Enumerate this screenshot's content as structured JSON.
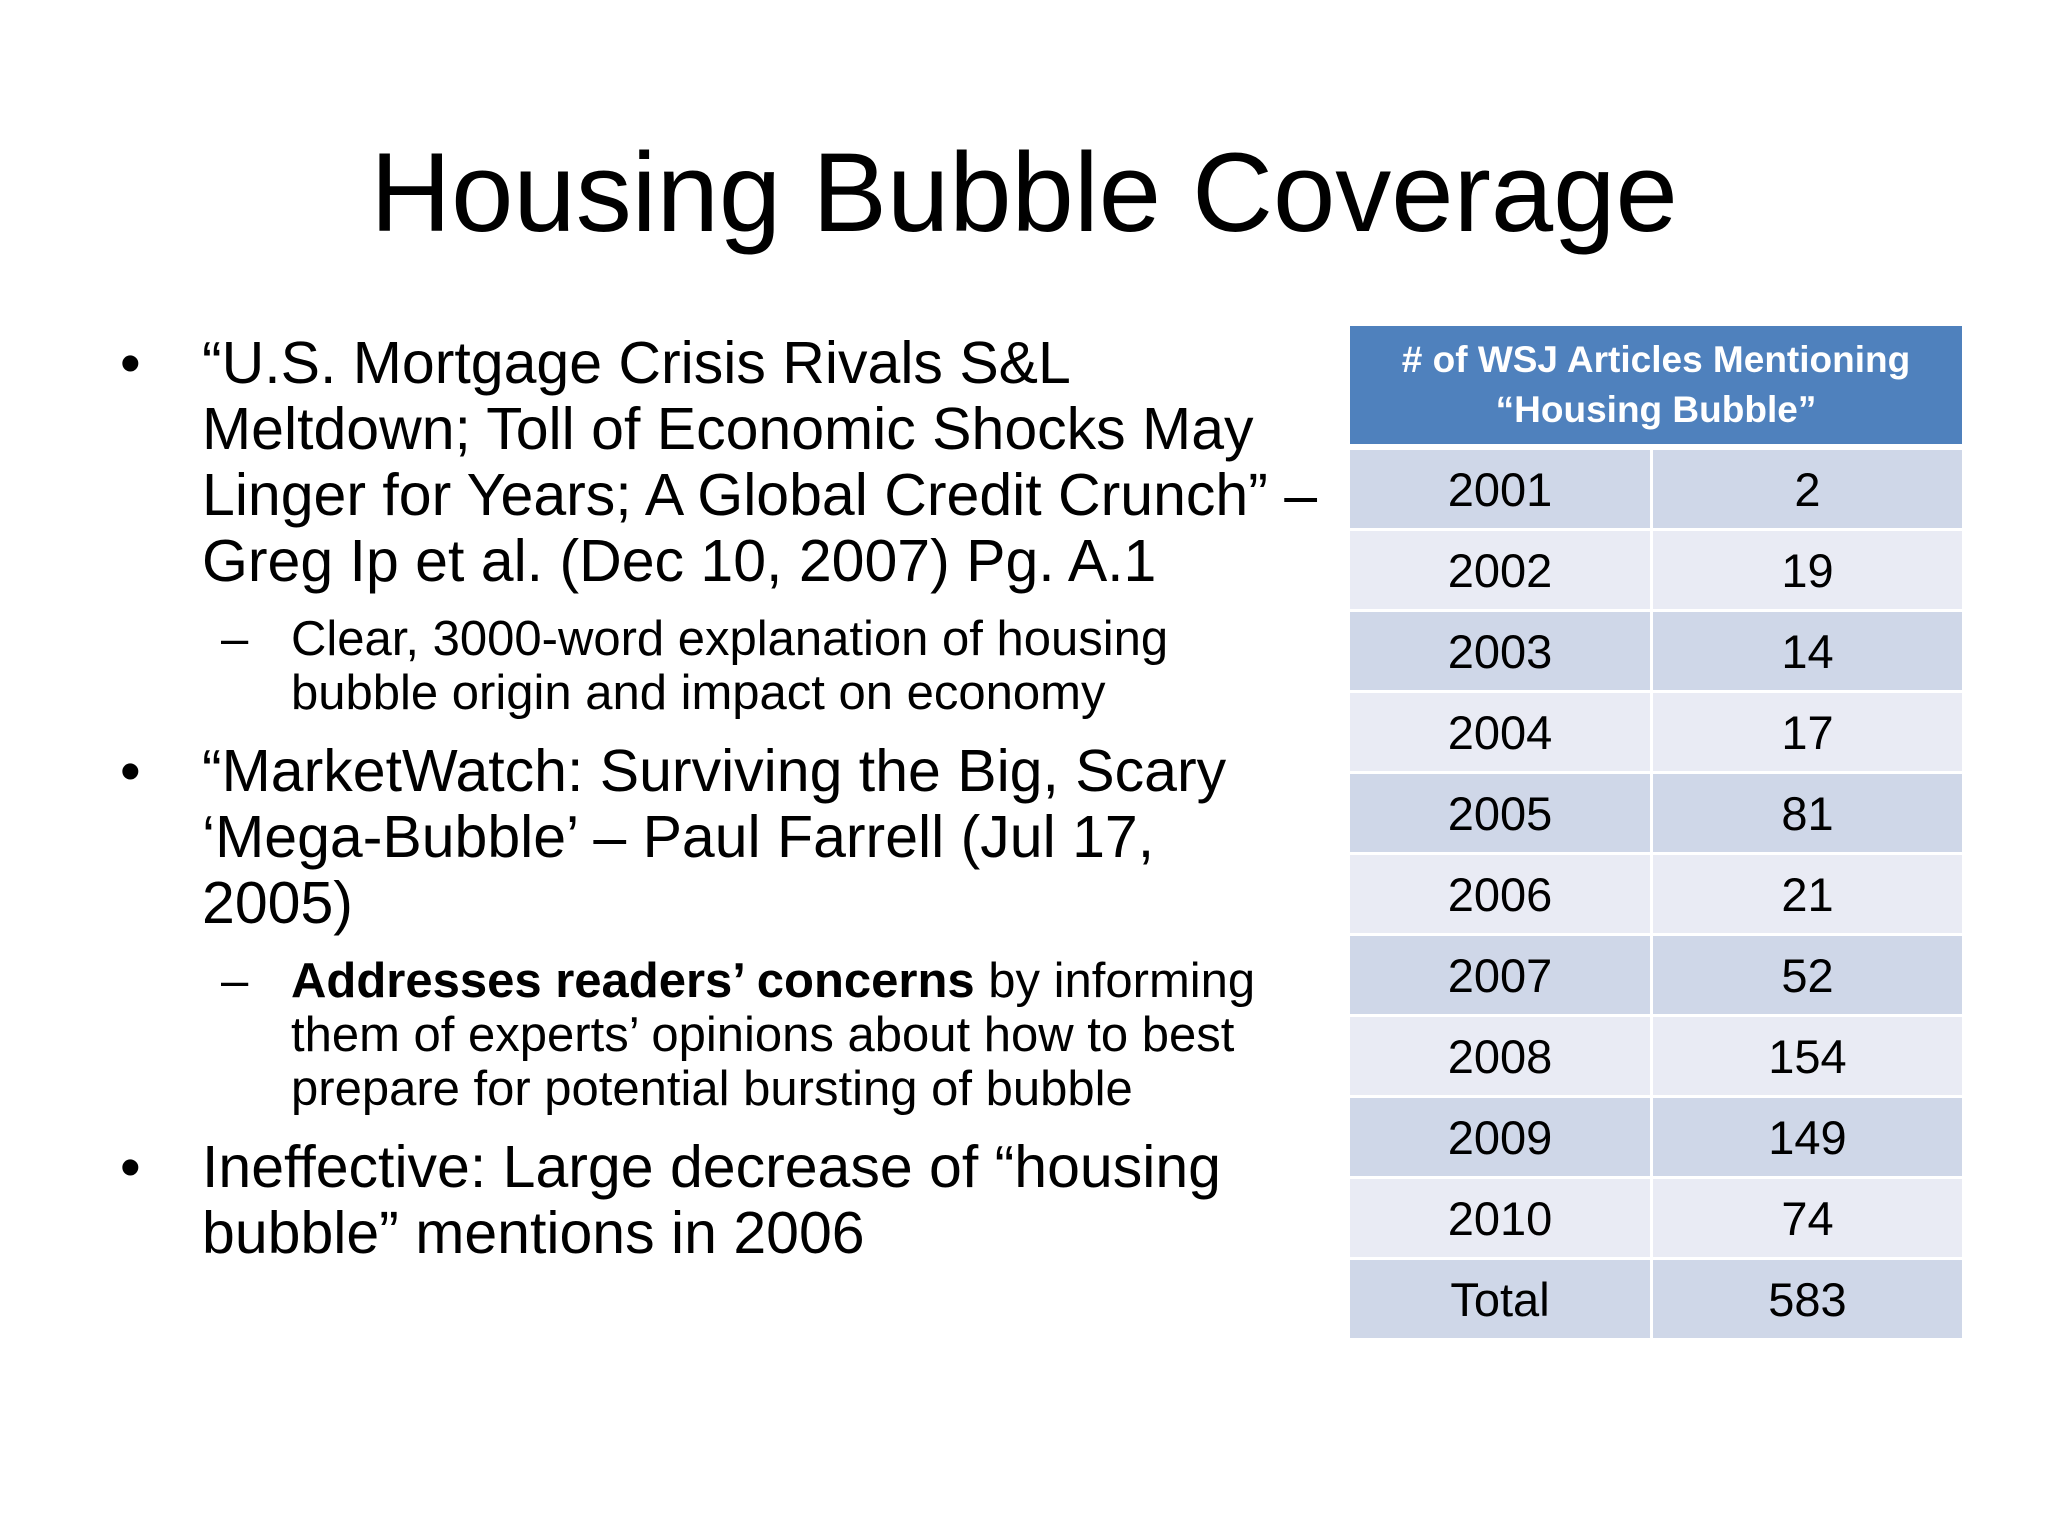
{
  "slide": {
    "title": "Housing Bubble Coverage"
  },
  "bullets": [
    {
      "text": "“U.S. Mortgage Crisis Rivals S&L Meltdown; Toll of Economic Shocks May Linger for Years; A Global Credit Crunch” – Greg Ip et al. (Dec 10, 2007) Pg. A.1",
      "sub": {
        "bold": "",
        "text": "Clear, 3000-word explanation of housing bubble origin and impact on economy"
      }
    },
    {
      "text": "“MarketWatch: Surviving the Big, Scary ‘Mega-Bubble’ – Paul Farrell (Jul 17, 2005)",
      "sub": {
        "bold": "Addresses readers’ concerns",
        "text": " by informing them of experts’ opinions about how to best prepare for potential bursting of bubble"
      }
    },
    {
      "text": "Ineffective: Large decrease of “housing bubble” mentions in 2006"
    }
  ],
  "symbols": {
    "bullet": "•",
    "dash": "–"
  },
  "table": {
    "header": "# of WSJ Articles Mentioning “Housing Bubble”",
    "rows": [
      {
        "year": "2001",
        "count": "2"
      },
      {
        "year": "2002",
        "count": "19"
      },
      {
        "year": "2003",
        "count": "14"
      },
      {
        "year": "2004",
        "count": "17"
      },
      {
        "year": "2005",
        "count": "81"
      },
      {
        "year": "2006",
        "count": "21"
      },
      {
        "year": "2007",
        "count": "52"
      },
      {
        "year": "2008",
        "count": "154"
      },
      {
        "year": "2009",
        "count": "149"
      },
      {
        "year": "2010",
        "count": "74"
      },
      {
        "year": "Total",
        "count": "583"
      }
    ]
  },
  "colors": {
    "header_bg": "#4f81bd",
    "row_dark": "#cfd7e8",
    "row_light": "#e9ebf4"
  }
}
